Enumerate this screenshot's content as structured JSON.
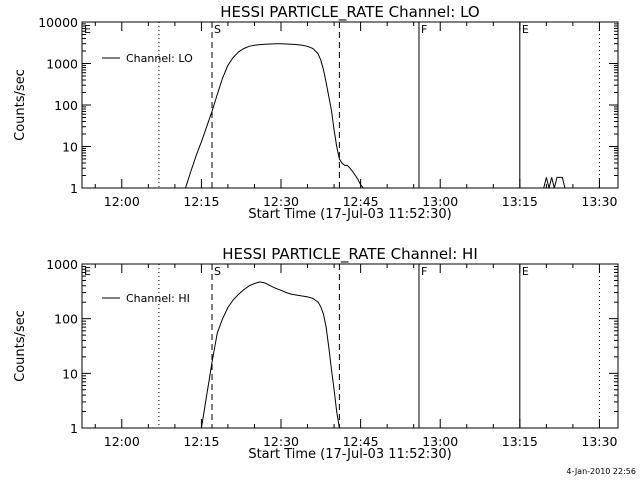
{
  "chart_data": [
    {
      "type": "line",
      "title": "HESSI PARTICLE_RATE Channel: LO",
      "xlabel": "Start Time (17-Jul-03 11:52:30)",
      "ylabel": "Counts/sec",
      "y_scale": "log",
      "ylim": [
        1,
        10000
      ],
      "xlim": [
        "11:52:30",
        "13:33:30"
      ],
      "x_ticks": [
        "12:00",
        "12:15",
        "12:30",
        "12:45",
        "13:00",
        "13:15",
        "13:30"
      ],
      "y_ticks": [
        "1",
        "10",
        "100",
        "1000",
        "10000"
      ],
      "legend": {
        "position": "top-left",
        "entries": [
          "Channel: LO"
        ]
      },
      "series": [
        {
          "name": "Channel: LO",
          "points": [
            [
              "12:12:00",
              1
            ],
            [
              "12:13:00",
              2.5
            ],
            [
              "12:14:00",
              6
            ],
            [
              "12:15:00",
              13
            ],
            [
              "12:16:00",
              30
            ],
            [
              "12:17:00",
              70
            ],
            [
              "12:18:00",
              180
            ],
            [
              "12:19:00",
              450
            ],
            [
              "12:20:00",
              900
            ],
            [
              "12:21:00",
              1400
            ],
            [
              "12:22:00",
              1900
            ],
            [
              "12:23:00",
              2300
            ],
            [
              "12:24:00",
              2600
            ],
            [
              "12:25:00",
              2750
            ],
            [
              "12:26:00",
              2850
            ],
            [
              "12:27:00",
              2900
            ],
            [
              "12:28:00",
              2950
            ],
            [
              "12:29:00",
              3000
            ],
            [
              "12:30:00",
              3000
            ],
            [
              "12:31:00",
              2950
            ],
            [
              "12:32:00",
              2900
            ],
            [
              "12:33:00",
              2850
            ],
            [
              "12:34:00",
              2750
            ],
            [
              "12:35:00",
              2600
            ],
            [
              "12:36:00",
              2300
            ],
            [
              "12:37:00",
              1700
            ],
            [
              "12:37:30",
              1200
            ],
            [
              "12:38:00",
              700
            ],
            [
              "12:38:30",
              350
            ],
            [
              "12:39:00",
              160
            ],
            [
              "12:39:30",
              75
            ],
            [
              "12:40:00",
              25
            ],
            [
              "12:40:30",
              10
            ],
            [
              "12:41:00",
              5
            ],
            [
              "12:41:30",
              4
            ],
            [
              "12:42:00",
              3.5
            ],
            [
              "12:42:30",
              3.5
            ],
            [
              "12:43:00",
              3
            ],
            [
              "12:43:30",
              2.5
            ],
            [
              "12:44:00",
              2
            ],
            [
              "12:44:30",
              1.6
            ],
            [
              "12:45:00",
              1.2
            ],
            [
              "12:45:30",
              1
            ]
          ],
          "flicker_points": [
            [
              "13:19:30",
              1
            ],
            [
              "13:20:00",
              1.8
            ],
            [
              "13:20:30",
              1
            ],
            [
              "13:21:00",
              1.8
            ],
            [
              "13:21:30",
              1
            ],
            [
              "13:22:00",
              1.8
            ],
            [
              "13:22:30",
              1.8
            ],
            [
              "13:23:00",
              1.8
            ],
            [
              "13:23:30",
              1
            ]
          ]
        }
      ],
      "markers": [
        {
          "label": "E",
          "time": "11:52:30",
          "style": "solid"
        },
        {
          "label": "",
          "time": "12:07:00",
          "style": "dotted"
        },
        {
          "label": "S",
          "time": "12:17:00",
          "style": "dashed"
        },
        {
          "label": "",
          "time": "12:41:00",
          "style": "dashed"
        },
        {
          "label": "F",
          "time": "12:56:00",
          "style": "solid"
        },
        {
          "label": "E",
          "time": "13:15:00",
          "style": "solid"
        },
        {
          "label": "",
          "time": "13:30:00",
          "style": "dotted"
        }
      ]
    },
    {
      "type": "line",
      "title": "HESSI PARTICLE_RATE Channel: HI",
      "xlabel": "Start Time (17-Jul-03 11:52:30)",
      "ylabel": "Counts/sec",
      "y_scale": "log",
      "ylim": [
        1,
        1000
      ],
      "xlim": [
        "11:52:30",
        "13:33:30"
      ],
      "x_ticks": [
        "12:00",
        "12:15",
        "12:30",
        "12:45",
        "13:00",
        "13:15",
        "13:30"
      ],
      "y_ticks": [
        "1",
        "10",
        "100",
        "1000"
      ],
      "legend": {
        "position": "top-left",
        "entries": [
          "Channel: HI"
        ]
      },
      "series": [
        {
          "name": "Channel: HI",
          "points": [
            [
              "12:15:00",
              1
            ],
            [
              "12:15:30",
              2
            ],
            [
              "12:16:00",
              4
            ],
            [
              "12:16:30",
              8
            ],
            [
              "12:17:00",
              16
            ],
            [
              "12:17:30",
              30
            ],
            [
              "12:18:00",
              55
            ],
            [
              "12:19:00",
              100
            ],
            [
              "12:20:00",
              160
            ],
            [
              "12:21:00",
              220
            ],
            [
              "12:22:00",
              280
            ],
            [
              "12:23:00",
              340
            ],
            [
              "12:24:00",
              400
            ],
            [
              "12:25:00",
              440
            ],
            [
              "12:26:00",
              470
            ],
            [
              "12:27:00",
              450
            ],
            [
              "12:28:00",
              400
            ],
            [
              "12:29:00",
              360
            ],
            [
              "12:30:00",
              330
            ],
            [
              "12:31:00",
              300
            ],
            [
              "12:32:00",
              280
            ],
            [
              "12:33:00",
              270
            ],
            [
              "12:34:00",
              260
            ],
            [
              "12:35:00",
              250
            ],
            [
              "12:36:00",
              235
            ],
            [
              "12:37:00",
              200
            ],
            [
              "12:37:30",
              165
            ],
            [
              "12:38:00",
              120
            ],
            [
              "12:38:30",
              70
            ],
            [
              "12:39:00",
              30
            ],
            [
              "12:39:30",
              12
            ],
            [
              "12:40:00",
              5
            ],
            [
              "12:40:30",
              2
            ],
            [
              "12:41:00",
              1
            ]
          ]
        }
      ],
      "markers": [
        {
          "label": "E",
          "time": "11:52:30",
          "style": "solid"
        },
        {
          "label": "",
          "time": "12:07:00",
          "style": "dotted"
        },
        {
          "label": "S",
          "time": "12:17:00",
          "style": "dashed"
        },
        {
          "label": "",
          "time": "12:41:00",
          "style": "dashed"
        },
        {
          "label": "F",
          "time": "12:56:00",
          "style": "solid"
        },
        {
          "label": "E",
          "time": "13:15:00",
          "style": "solid"
        },
        {
          "label": "",
          "time": "13:30:00",
          "style": "dotted"
        }
      ]
    }
  ],
  "footer": {
    "timestamp": "4-Jan-2010 22:56"
  }
}
